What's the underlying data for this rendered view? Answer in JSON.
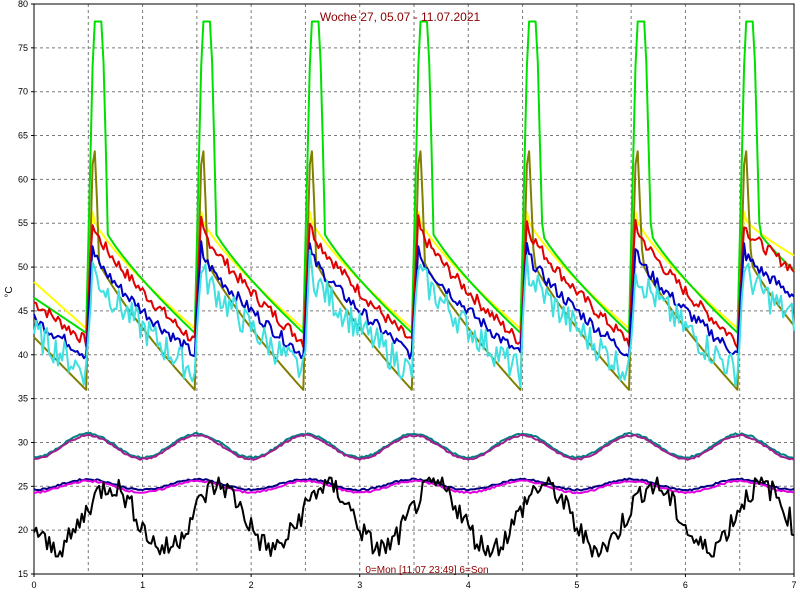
{
  "chart_data": {
    "type": "line",
    "title": "Woche 27, 05.07 - 11.07.2021",
    "footer": "0=Mon [11.07 23:49] 6=Son",
    "ylabel": "°C",
    "xlabel": "",
    "xlim": [
      0,
      7
    ],
    "ylim": [
      15,
      80
    ],
    "xticks": [
      "0",
      "1",
      "2",
      "3",
      "4",
      "5",
      "6",
      "7"
    ],
    "yticks": [
      "15",
      "20",
      "25",
      "30",
      "35",
      "40",
      "45",
      "50",
      "55",
      "60",
      "65",
      "70",
      "75",
      "80"
    ],
    "grid": true,
    "day_peak_offsets": [
      0.48,
      1.48,
      2.48,
      3.48,
      4.48,
      5.48,
      6.48
    ],
    "series": [
      {
        "color": "#ffff00",
        "start": 48.3,
        "pre_peak": 43.0,
        "peak": 58.5,
        "decay_end": 48.0
      },
      {
        "color": "#00e000",
        "start": 46.5,
        "pre_peak": 42.5,
        "peak": 78.0,
        "peak_width": 0.08,
        "after": 55.0,
        "decay_end": 44.5
      },
      {
        "color": "#808000",
        "start": 42.0,
        "pre_peak": 36.0,
        "peak": 66.0,
        "after": 52.0,
        "decay_end": 36.5
      },
      {
        "color": "#e00000",
        "start": 46.0,
        "pre_peak": 41.5,
        "peak": 57.5,
        "decay_end": 46.0
      },
      {
        "color": "#0000c0",
        "start": 44.0,
        "pre_peak": 40.0,
        "peak": 54.5,
        "decay_end": 43.0
      },
      {
        "color": "#40e0e0",
        "start": 42.5,
        "pre_peak": 38.0,
        "peak": 52.5,
        "decay_end": 40.0
      },
      {
        "color": "#008080",
        "daily_min": 28.3,
        "daily_max": 31.0
      },
      {
        "color": "#a0208f",
        "daily_min": 28.1,
        "daily_max": 30.8
      },
      {
        "color": "#000080",
        "daily_min": 24.6,
        "daily_max": 25.8
      },
      {
        "color": "#e000e0",
        "daily_min": 24.3,
        "daily_max": 25.6
      },
      {
        "color": "#000000",
        "daily_min": 17.0,
        "daily_max": 26.0
      }
    ]
  }
}
